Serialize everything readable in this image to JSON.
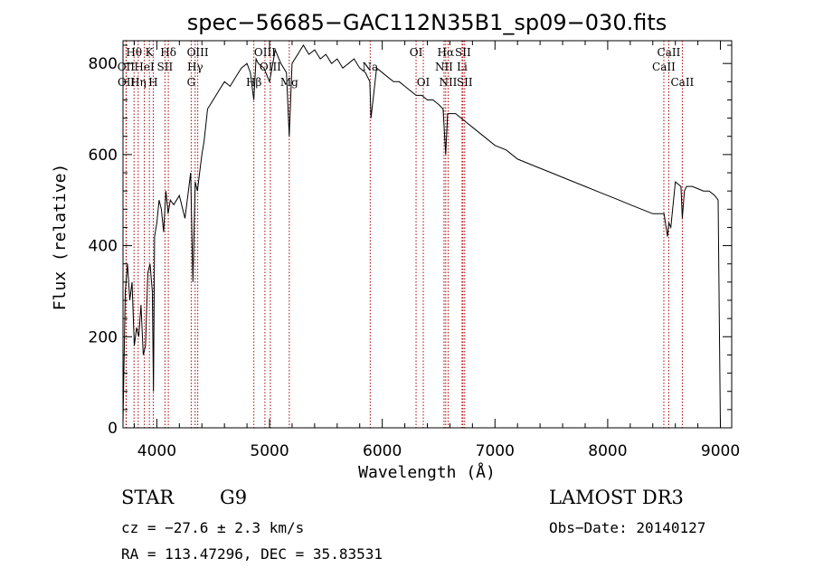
{
  "chart_data": {
    "type": "line",
    "title": "spec−56685−GAC112N35B1_sp09−030.fits",
    "xlabel": "Wavelength (Å)",
    "ylabel": "Flux (relative)",
    "xlim": [
      3700,
      9100
    ],
    "ylim": [
      0,
      850
    ],
    "xticks": [
      4000,
      5000,
      6000,
      7000,
      8000,
      9000
    ],
    "yticks": [
      0,
      200,
      400,
      600,
      800
    ],
    "series": [
      {
        "name": "flux",
        "x": [
          3700,
          3720,
          3740,
          3760,
          3780,
          3800,
          3820,
          3840,
          3860,
          3880,
          3900,
          3920,
          3940,
          3960,
          3970,
          3980,
          4000,
          4020,
          4040,
          4060,
          4080,
          4100,
          4120,
          4150,
          4200,
          4250,
          4280,
          4300,
          4320,
          4340,
          4360,
          4380,
          4400,
          4420,
          4450,
          4500,
          4550,
          4600,
          4650,
          4700,
          4750,
          4800,
          4830,
          4860,
          4880,
          4900,
          4950,
          5000,
          5050,
          5100,
          5150,
          5175,
          5200,
          5250,
          5300,
          5350,
          5400,
          5450,
          5500,
          5550,
          5600,
          5650,
          5700,
          5750,
          5800,
          5850,
          5890,
          5900,
          5950,
          6000,
          6050,
          6100,
          6150,
          6200,
          6250,
          6300,
          6350,
          6400,
          6450,
          6500,
          6540,
          6563,
          6580,
          6600,
          6650,
          6700,
          6750,
          6800,
          6900,
          7000,
          7100,
          7200,
          7300,
          7400,
          7500,
          7600,
          7700,
          7800,
          7900,
          8000,
          8100,
          8200,
          8300,
          8400,
          8498,
          8500,
          8530,
          8542,
          8560,
          8600,
          8650,
          8662,
          8680,
          8700,
          8750,
          8800,
          8850,
          8900,
          8950,
          8980,
          9000
        ],
        "values": [
          10,
          300,
          360,
          280,
          320,
          180,
          220,
          200,
          270,
          160,
          180,
          340,
          360,
          300,
          80,
          420,
          450,
          500,
          480,
          430,
          520,
          470,
          500,
          490,
          510,
          460,
          520,
          560,
          320,
          540,
          520,
          560,
          600,
          630,
          700,
          720,
          740,
          760,
          750,
          770,
          790,
          800,
          780,
          720,
          810,
          800,
          790,
          760,
          830,
          800,
          780,
          640,
          800,
          820,
          840,
          820,
          830,
          810,
          820,
          800,
          810,
          790,
          800,
          810,
          790,
          780,
          760,
          680,
          790,
          780,
          770,
          760,
          760,
          750,
          740,
          730,
          730,
          720,
          720,
          710,
          700,
          600,
          690,
          690,
          690,
          680,
          670,
          660,
          640,
          620,
          610,
          590,
          580,
          570,
          560,
          550,
          540,
          530,
          520,
          510,
          500,
          490,
          480,
          470,
          470,
          470,
          420,
          450,
          440,
          540,
          530,
          460,
          520,
          530,
          530,
          525,
          520,
          520,
          510,
          500,
          0
        ]
      }
    ],
    "spectral_lines": [
      {
        "label": "Hθ",
        "x": 3798,
        "row": 1
      },
      {
        "label": "OII",
        "x": 3727,
        "row": 2
      },
      {
        "label": "OII",
        "x": 3729,
        "row": 3
      },
      {
        "label": "K",
        "x": 3934,
        "row": 1
      },
      {
        "label": "HeI",
        "x": 3889,
        "row": 2
      },
      {
        "label": "Hη",
        "x": 3835,
        "row": 3
      },
      {
        "label": "SII",
        "x": 4072,
        "row": 2
      },
      {
        "label": "H",
        "x": 3968,
        "row": 3
      },
      {
        "label": "Hδ",
        "x": 4102,
        "row": 1
      },
      {
        "label": "OIII",
        "x": 4363,
        "row": 1
      },
      {
        "label": "Hγ",
        "x": 4340,
        "row": 2
      },
      {
        "label": "G",
        "x": 4305,
        "row": 3
      },
      {
        "label": "OIII",
        "x": 4959,
        "row": 1
      },
      {
        "label": "OIII",
        "x": 5007,
        "row": 2
      },
      {
        "label": "Hβ",
        "x": 4861,
        "row": 3
      },
      {
        "label": "Mg",
        "x": 5175,
        "row": 3
      },
      {
        "label": "Na",
        "x": 5893,
        "row": 2
      },
      {
        "label": "OI",
        "x": 6300,
        "row": 1
      },
      {
        "label": "OI",
        "x": 6364,
        "row": 3
      },
      {
        "label": "Hα",
        "x": 6563,
        "row": 1
      },
      {
        "label": "SII",
        "x": 6716,
        "row": 1
      },
      {
        "label": "NII",
        "x": 6548,
        "row": 2
      },
      {
        "label": "Li",
        "x": 6708,
        "row": 2
      },
      {
        "label": "NII",
        "x": 6584,
        "row": 3
      },
      {
        "label": "SII",
        "x": 6731,
        "row": 3
      },
      {
        "label": "CaII",
        "x": 8542,
        "row": 1
      },
      {
        "label": "CaII",
        "x": 8498,
        "row": 2
      },
      {
        "label": "CaII",
        "x": 8662,
        "row": 3
      }
    ]
  },
  "info": {
    "class": "STAR",
    "subclass": "G9",
    "survey": "LAMOST DR3",
    "cz": "cz = −27.6 ± 2.3 km/s",
    "obs_date": "Obs−Date: 20140127",
    "coords": "RA = 113.47296, DEC =  35.83531"
  },
  "colors": {
    "line_marker": "#b00000",
    "spectrum": "#000000"
  }
}
